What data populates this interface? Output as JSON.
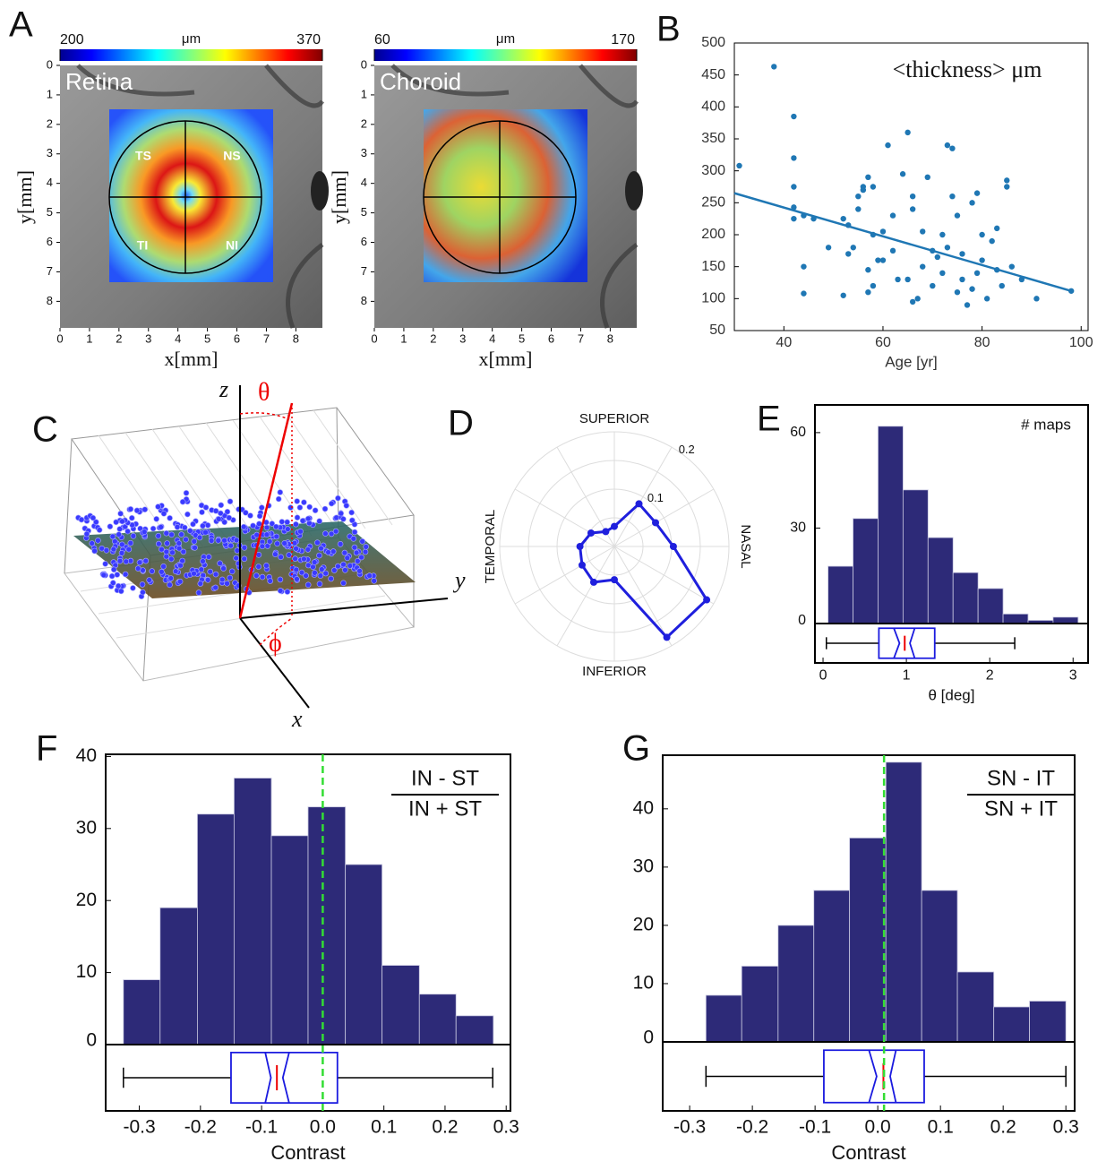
{
  "chart_data": [
    {
      "type": "thickness-map",
      "panel": "A",
      "title": "Retina",
      "colorbar": {
        "label": "μm",
        "ticks": [
          200,
          370
        ]
      },
      "xlim": [
        0,
        8.9
      ],
      "ylim": [
        0,
        8.9
      ],
      "xticks": [
        0,
        1,
        2,
        3,
        4,
        5,
        6,
        7,
        8
      ],
      "yticks": [
        0,
        1,
        2,
        3,
        4,
        5,
        6,
        7,
        8
      ],
      "xlabel": "x[mm]",
      "ylabel": "y[mm]",
      "sectors": [
        "TS",
        "NS",
        "TI",
        "NI"
      ]
    },
    {
      "type": "thickness-map",
      "title": "Choroid",
      "colorbar": {
        "label": "μm",
        "ticks": [
          60,
          170
        ]
      },
      "xlim": [
        0,
        8.9
      ],
      "ylim": [
        0,
        8.9
      ],
      "xticks": [
        0,
        1,
        2,
        3,
        4,
        5,
        6,
        7,
        8
      ],
      "yticks": [
        0,
        1,
        2,
        3,
        4,
        5,
        6,
        7,
        8
      ],
      "xlabel": "x[mm]",
      "ylabel": "y[mm]"
    },
    {
      "type": "scatter",
      "panel": "B",
      "annotation": "<thickness> μm",
      "xlabel": "Age [yr]",
      "color": "#1f77b4",
      "xlim": [
        30,
        101.4
      ],
      "ylim": [
        50,
        500
      ],
      "xticks": [
        40,
        60,
        80,
        100
      ],
      "yticks": [
        50,
        100,
        150,
        200,
        250,
        300,
        350,
        400,
        450,
        500
      ],
      "x": [
        31,
        38,
        42,
        42,
        42,
        42,
        42,
        44,
        44,
        44,
        46,
        52,
        52,
        53,
        54,
        55,
        55,
        56,
        56,
        57,
        58,
        58,
        57,
        58,
        60,
        61,
        62,
        63,
        64,
        65,
        66,
        66,
        65,
        67,
        68,
        70,
        72,
        72,
        73,
        74,
        74,
        75,
        73,
        75,
        76,
        76,
        77,
        78,
        79,
        80,
        80,
        81,
        82,
        83,
        84,
        85,
        85,
        86,
        88,
        91,
        98,
        68,
        70,
        71,
        60,
        62,
        57,
        66,
        78,
        83,
        69,
        53,
        49,
        59,
        79
      ],
      "values": [
        308,
        463,
        385,
        320,
        275,
        243,
        225,
        230,
        150,
        108,
        225,
        225,
        105,
        215,
        180,
        240,
        260,
        275,
        270,
        290,
        275,
        200,
        145,
        120,
        160,
        340,
        175,
        130,
        295,
        360,
        260,
        240,
        130,
        100,
        150,
        175,
        200,
        140,
        340,
        335,
        260,
        230,
        180,
        110,
        170,
        130,
        90,
        250,
        265,
        200,
        160,
        100,
        190,
        145,
        120,
        285,
        275,
        150,
        130,
        100,
        112,
        205,
        120,
        165,
        205,
        230,
        110,
        95,
        115,
        210,
        290,
        170,
        180,
        160,
        140
      ],
      "fit": {
        "x": [
          30,
          98
        ],
        "y": [
          265,
          112
        ]
      }
    },
    {
      "type": "diagram3d",
      "panel": "C",
      "axis_labels": [
        "z",
        "y",
        "x"
      ],
      "angle_labels": [
        "θ",
        "ϕ"
      ]
    },
    {
      "type": "polar",
      "panel": "D",
      "directions": [
        "SUPERIOR",
        "NASAL",
        "INFERIOR",
        "TEMPORAL"
      ],
      "color": "#1f1fdd",
      "rlim": [
        0,
        0.2
      ],
      "rticks": [
        0.1,
        0.2
      ],
      "values": [
        0.103,
        0.083,
        0.086,
        0.035,
        0.03,
        0.047,
        0.06,
        0.065,
        0.072,
        0.058,
        0.183,
        0.186
      ]
    },
    {
      "type": "histogram",
      "panel": "E",
      "annotation": "# maps",
      "xlabel": "θ [deg]",
      "color": "#2d2a78",
      "bins": [
        0.06,
        0.36,
        0.66,
        0.96,
        1.26,
        1.56,
        1.86,
        2.16,
        2.46,
        2.76,
        3.06
      ],
      "values": [
        18,
        33,
        62,
        42,
        27,
        16,
        11,
        3,
        1,
        2
      ],
      "xlim": [
        -0.097,
        3.18
      ],
      "ylim": [
        0,
        68.7
      ],
      "xticks": [
        0,
        1,
        2,
        3
      ],
      "yticks": [
        0,
        30,
        60
      ],
      "boxplot": {
        "min": 0.04,
        "q1": 0.67,
        "median": 0.98,
        "q3": 1.34,
        "max": 2.3,
        "notch": [
          0.85,
          1.1
        ]
      }
    },
    {
      "type": "histogram",
      "panel": "F",
      "annotation": [
        "IN - ST",
        "IN + ST"
      ],
      "xlabel": "Contrast",
      "color": "#2d2a78",
      "bins": [
        -0.326,
        -0.266,
        -0.205,
        -0.145,
        -0.084,
        -0.024,
        0.037,
        0.097,
        0.158,
        0.218,
        0.279
      ],
      "values": [
        9,
        19,
        32,
        37,
        29,
        33,
        25,
        11,
        7,
        4
      ],
      "xlim": [
        -0.355,
        0.307
      ],
      "ylim": [
        0,
        40.3
      ],
      "xticks": [
        -0.3,
        -0.2,
        -0.1,
        {
          "value": 0,
          "label": "0.0"
        },
        0.1,
        0.2,
        0.3
      ],
      "yticks": [
        0,
        10,
        20,
        30,
        40
      ],
      "vline": 0,
      "boxplot": {
        "min": -0.326,
        "q1": -0.15,
        "median": -0.075,
        "q3": 0.024,
        "max": 0.278,
        "notch": [
          -0.094,
          -0.055
        ]
      }
    },
    {
      "type": "histogram",
      "panel": "G",
      "annotation": [
        "SN - IT",
        "SN + IT"
      ],
      "xlabel": "Contrast",
      "color": "#2d2a78",
      "bins": [
        -0.274,
        -0.217,
        -0.159,
        -0.102,
        -0.045,
        0.013,
        0.07,
        0.127,
        0.185,
        0.242,
        0.3
      ],
      "values": [
        8,
        13,
        20,
        26,
        35,
        48,
        26,
        12,
        6,
        7
      ],
      "xlim": [
        -0.343,
        0.314
      ],
      "ylim": [
        0,
        49.2
      ],
      "xticks": [
        -0.3,
        -0.2,
        -0.1,
        {
          "value": 0,
          "label": "0.0"
        },
        0.1,
        0.2,
        0.3
      ],
      "yticks": [
        0,
        10,
        20,
        30,
        40
      ],
      "vline": 0.01,
      "boxplot": {
        "min": -0.274,
        "q1": -0.086,
        "median": 0.009,
        "q3": 0.074,
        "max": 0.3,
        "notch": [
          -0.014,
          0.029
        ]
      }
    }
  ]
}
